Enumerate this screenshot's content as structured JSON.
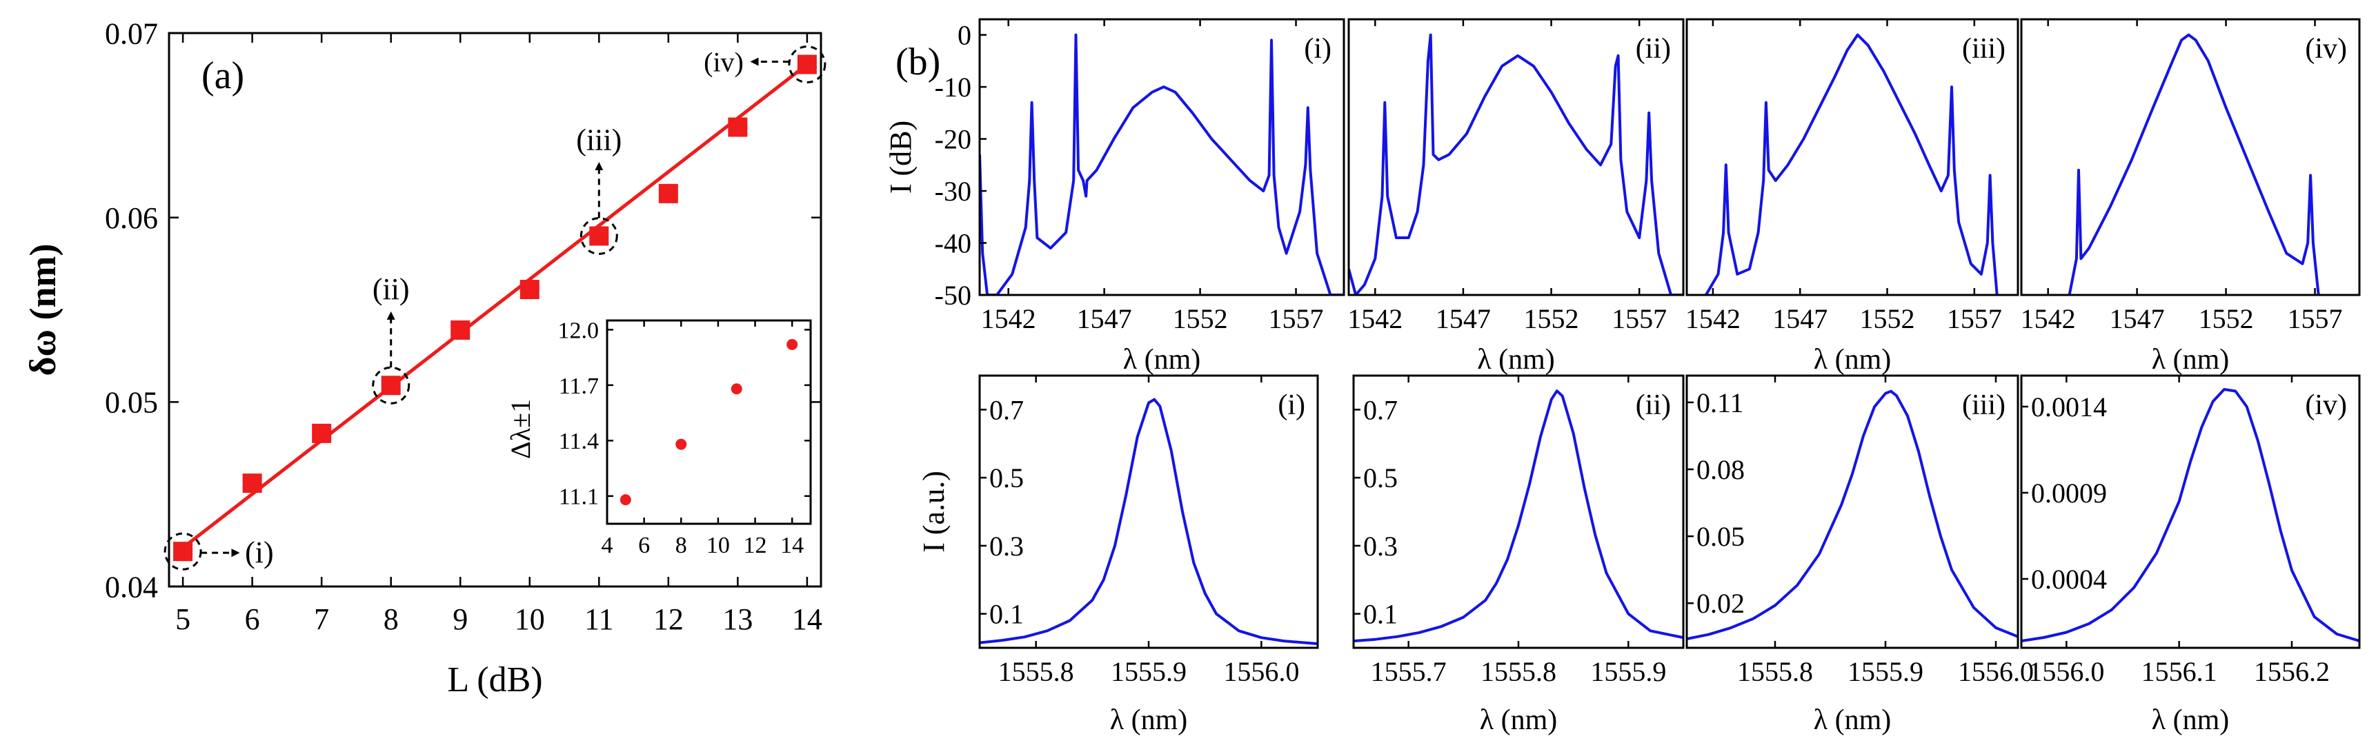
{
  "colors": {
    "red": "#ee1c1c",
    "blue": "#1414e6",
    "axis": "#000000"
  },
  "panel_a": {
    "label": "(a)",
    "callouts": [
      "(i)",
      "(ii)",
      "(iii)",
      "(iv)"
    ],
    "inset": {
      "ylabel": "Δλ±1"
    }
  },
  "panel_b": {
    "label": "(b)"
  },
  "chart_data": [
    {
      "id": "a",
      "type": "scatter",
      "title": "",
      "xlabel": "L (dB)",
      "ylabel": "δω (nm)",
      "x": [
        5,
        6,
        7,
        8,
        9,
        10,
        11,
        12,
        13,
        14
      ],
      "y": [
        0.0419,
        0.0456,
        0.0483,
        0.0509,
        0.0539,
        0.0561,
        0.059,
        0.0613,
        0.0649,
        0.0683
      ],
      "xlim": [
        4.8,
        14.2
      ],
      "ylim": [
        0.04,
        0.07
      ],
      "xticks": [
        5,
        6,
        7,
        8,
        9,
        10,
        11,
        12,
        13,
        14
      ],
      "xtick_labels": [
        "5",
        "6",
        "7",
        "8",
        "9",
        "10",
        "11",
        "12",
        "13",
        "14"
      ],
      "yticks": [
        0.04,
        0.05,
        0.06,
        0.07
      ],
      "ytick_labels": [
        "0.04",
        "0.05",
        "0.06",
        "0.07"
      ],
      "fit_line": {
        "x": [
          5,
          14
        ],
        "y": [
          0.0421,
          0.0683
        ]
      },
      "highlighted": [
        {
          "x": 5,
          "label": "(i)"
        },
        {
          "x": 8,
          "label": "(ii)"
        },
        {
          "x": 11,
          "label": "(iii)"
        },
        {
          "x": 14,
          "label": "(iv)"
        }
      ]
    },
    {
      "id": "a-inset",
      "type": "scatter",
      "xlabel": "",
      "ylabel": "Δλ±1",
      "x": [
        5,
        8,
        11,
        14
      ],
      "y": [
        11.08,
        11.38,
        11.68,
        11.92
      ],
      "xlim": [
        4,
        15
      ],
      "ylim": [
        10.95,
        12.05
      ],
      "xticks": [
        4,
        6,
        8,
        10,
        12,
        14
      ],
      "xtick_labels": [
        "4",
        "6",
        "8",
        "10",
        "12",
        "14"
      ],
      "yticks": [
        11.1,
        11.4,
        11.7,
        12.0
      ],
      "ytick_labels": [
        "11.1",
        "11.4",
        "11.7",
        "12.0"
      ]
    },
    {
      "id": "b-top-i",
      "type": "line",
      "tag": "(i)",
      "xlabel": "λ (nm)",
      "ylabel": "I (dB)",
      "xlim": [
        1540.5,
        1559.5
      ],
      "ylim": [
        -50,
        3
      ],
      "xticks": [
        1542,
        1547,
        1552,
        1557
      ],
      "xtick_labels": [
        "1542",
        "1547",
        "1552",
        "1557"
      ],
      "yticks": [
        0,
        -10,
        -20,
        -30,
        -40,
        -50
      ],
      "ytick_labels": [
        "0",
        "-10",
        "-20",
        "-30",
        "-40",
        "-50"
      ],
      "x": [
        1540.5,
        1540.65,
        1540.9,
        1541.4,
        1542.2,
        1542.9,
        1543.1,
        1543.22,
        1543.35,
        1543.5,
        1544.2,
        1545,
        1545.4,
        1545.52,
        1545.65,
        1545.9,
        1546.0,
        1546.05,
        1546.1,
        1546.6,
        1547.5,
        1548.5,
        1549.5,
        1550.1,
        1550.7,
        1551.6,
        1552.6,
        1553.6,
        1554.6,
        1555.3,
        1555.6,
        1555.72,
        1555.85,
        1556.1,
        1556.5,
        1557.2,
        1557.5,
        1557.62,
        1557.75,
        1558.1,
        1558.8,
        1559.5
      ],
      "y": [
        -23,
        -42,
        -50,
        -50,
        -46,
        -37,
        -28,
        -13,
        -28,
        -39,
        -41,
        -38,
        -28,
        0,
        -26,
        -28,
        -30,
        -31,
        -28,
        -26,
        -20,
        -14,
        -11,
        -10,
        -11,
        -15,
        -20,
        -24,
        -28,
        -30,
        -27,
        -1,
        -27,
        -37,
        -42,
        -34,
        -25,
        -14,
        -26,
        -42,
        -50,
        -50
      ]
    },
    {
      "id": "b-top-ii",
      "type": "line",
      "tag": "(ii)",
      "xlabel": "λ (nm)",
      "ylabel": "",
      "xlim": [
        1540.5,
        1559.5
      ],
      "ylim": [
        -50,
        3
      ],
      "xticks": [
        1542,
        1547,
        1552,
        1557
      ],
      "xtick_labels": [
        "1542",
        "1547",
        "1552",
        "1557"
      ],
      "yticks": [],
      "ytick_labels": [],
      "x": [
        1540.5,
        1540.9,
        1541.4,
        1542.0,
        1542.4,
        1542.55,
        1542.7,
        1543.2,
        1543.9,
        1544.4,
        1544.75,
        1545.0,
        1545.15,
        1545.3,
        1545.6,
        1546.2,
        1547.2,
        1548.2,
        1549.2,
        1550.1,
        1551.0,
        1552.0,
        1553.0,
        1554.0,
        1554.8,
        1555.4,
        1555.65,
        1555.8,
        1555.95,
        1556.3,
        1557.0,
        1557.4,
        1557.55,
        1557.7,
        1558.1,
        1558.8,
        1559.5
      ],
      "y": [
        -45,
        -50,
        -48,
        -43,
        -31,
        -13,
        -31,
        -39,
        -39,
        -34,
        -25,
        -5,
        0,
        -23,
        -24,
        -23,
        -19,
        -12,
        -6,
        -4,
        -6,
        -11,
        -17,
        -22,
        -25,
        -21,
        -6,
        -4,
        -24,
        -34,
        -39,
        -28,
        -15,
        -28,
        -42,
        -50,
        -50
      ]
    },
    {
      "id": "b-top-iii",
      "type": "line",
      "tag": "(iii)",
      "xlabel": "λ (nm)",
      "ylabel": "",
      "xlim": [
        1540.5,
        1559.5
      ],
      "ylim": [
        -50,
        3
      ],
      "xticks": [
        1542,
        1547,
        1552,
        1557
      ],
      "xtick_labels": [
        "1542",
        "1547",
        "1552",
        "1557"
      ],
      "yticks": [],
      "ytick_labels": [],
      "x": [
        1541.6,
        1542.3,
        1542.6,
        1542.75,
        1542.9,
        1543.4,
        1544.1,
        1544.6,
        1544.9,
        1545.05,
        1545.2,
        1545.6,
        1546.3,
        1547.2,
        1548.1,
        1549.0,
        1549.7,
        1550.3,
        1550.9,
        1551.8,
        1552.7,
        1553.6,
        1554.4,
        1555.1,
        1555.5,
        1555.7,
        1555.85,
        1556.1,
        1556.8,
        1557.4,
        1557.75,
        1557.9,
        1558.05,
        1558.3
      ],
      "y": [
        -50,
        -46,
        -38,
        -25,
        -38,
        -46,
        -45,
        -38,
        -28,
        -13,
        -26,
        -28,
        -25,
        -20,
        -14,
        -8,
        -3,
        0,
        -2,
        -7,
        -13,
        -19,
        -25,
        -30,
        -27,
        -10,
        -26,
        -36,
        -44,
        -46,
        -40,
        -27,
        -40,
        -50
      ]
    },
    {
      "id": "b-top-iv",
      "type": "line",
      "tag": "(iv)",
      "xlabel": "λ (nm)",
      "ylabel": "",
      "xlim": [
        1540.5,
        1559.5
      ],
      "ylim": [
        -50,
        3
      ],
      "xticks": [
        1542,
        1547,
        1552,
        1557
      ],
      "xtick_labels": [
        "1542",
        "1547",
        "1552",
        "1557"
      ],
      "yticks": [],
      "ytick_labels": [],
      "x": [
        1543.2,
        1543.6,
        1543.72,
        1543.85,
        1544.3,
        1545.5,
        1546.7,
        1547.9,
        1549.0,
        1549.5,
        1549.9,
        1550.3,
        1551.0,
        1552.0,
        1553.2,
        1554.4,
        1555.4,
        1556.3,
        1556.6,
        1556.75,
        1556.9,
        1557.2
      ],
      "y": [
        -50,
        -43,
        -26,
        -43,
        -41,
        -33,
        -24,
        -14,
        -5,
        -1,
        0,
        -1,
        -5,
        -14,
        -24,
        -34,
        -42,
        -44,
        -40,
        -27,
        -40,
        -50
      ]
    },
    {
      "id": "b-bot-i",
      "type": "line",
      "tag": "(i)",
      "xlabel": "λ (nm)",
      "ylabel": "I (a.u.)",
      "xlim": [
        1555.75,
        1556.05
      ],
      "ylim": [
        0,
        0.8
      ],
      "xticks": [
        1555.8,
        1555.9,
        1556.0
      ],
      "xtick_labels": [
        "1555.8",
        "1555.9",
        "1556.0"
      ],
      "yticks": [
        0.1,
        0.3,
        0.5,
        0.7
      ],
      "ytick_labels": [
        "0.1",
        "0.3",
        "0.5",
        "0.7"
      ],
      "x": [
        1555.75,
        1555.77,
        1555.79,
        1555.81,
        1555.83,
        1555.85,
        1555.86,
        1555.87,
        1555.88,
        1555.89,
        1555.9,
        1555.905,
        1555.91,
        1555.92,
        1555.93,
        1555.94,
        1555.95,
        1555.96,
        1555.98,
        1556.0,
        1556.02,
        1556.05
      ],
      "y": [
        0.015,
        0.022,
        0.032,
        0.05,
        0.08,
        0.14,
        0.2,
        0.3,
        0.45,
        0.62,
        0.72,
        0.73,
        0.71,
        0.58,
        0.4,
        0.25,
        0.16,
        0.1,
        0.05,
        0.03,
        0.02,
        0.012
      ]
    },
    {
      "id": "b-bot-ii",
      "type": "line",
      "tag": "(ii)",
      "xlabel": "λ (nm)",
      "ylabel": "",
      "xlim": [
        1555.65,
        1555.95
      ],
      "ylim": [
        0,
        0.8
      ],
      "xticks": [
        1555.7,
        1555.8,
        1555.9
      ],
      "xtick_labels": [
        "1555.7",
        "1555.8",
        "1555.9"
      ],
      "yticks": [
        0.1,
        0.3,
        0.5,
        0.7
      ],
      "ytick_labels": [
        "0.1",
        "0.3",
        "0.5",
        "0.7"
      ],
      "x": [
        1555.65,
        1555.67,
        1555.69,
        1555.71,
        1555.73,
        1555.75,
        1555.77,
        1555.78,
        1555.79,
        1555.8,
        1555.81,
        1555.82,
        1555.83,
        1555.835,
        1555.84,
        1555.85,
        1555.86,
        1555.87,
        1555.88,
        1555.9,
        1555.92,
        1555.95
      ],
      "y": [
        0.02,
        0.025,
        0.033,
        0.045,
        0.063,
        0.09,
        0.14,
        0.19,
        0.26,
        0.36,
        0.48,
        0.62,
        0.73,
        0.755,
        0.74,
        0.63,
        0.47,
        0.33,
        0.22,
        0.1,
        0.05,
        0.03
      ]
    },
    {
      "id": "b-bot-iii",
      "type": "line",
      "tag": "(iii)",
      "xlabel": "λ (nm)",
      "ylabel": "",
      "xlim": [
        1555.72,
        1556.02
      ],
      "ylim": [
        0,
        0.122
      ],
      "xticks": [
        1555.8,
        1555.9,
        1556.0
      ],
      "xtick_labels": [
        "1555.8",
        "1555.9",
        "1556.0"
      ],
      "yticks": [
        0.02,
        0.05,
        0.08,
        0.11
      ],
      "ytick_labels": [
        "0.02",
        "0.05",
        "0.08",
        "0.11"
      ],
      "x": [
        1555.72,
        1555.74,
        1555.76,
        1555.78,
        1555.8,
        1555.82,
        1555.84,
        1555.86,
        1555.87,
        1555.88,
        1555.89,
        1555.9,
        1555.905,
        1555.91,
        1555.92,
        1555.93,
        1555.94,
        1555.95,
        1555.96,
        1555.98,
        1556.0,
        1556.02
      ],
      "y": [
        0.004,
        0.006,
        0.009,
        0.013,
        0.019,
        0.028,
        0.042,
        0.064,
        0.078,
        0.095,
        0.108,
        0.114,
        0.115,
        0.113,
        0.104,
        0.088,
        0.068,
        0.05,
        0.035,
        0.018,
        0.009,
        0.005
      ]
    },
    {
      "id": "b-bot-iv",
      "type": "line",
      "tag": "(iv)",
      "xlabel": "λ (nm)",
      "ylabel": "",
      "xlim": [
        1555.96,
        1556.26
      ],
      "ylim": [
        0,
        0.00158
      ],
      "xticks": [
        1556.0,
        1556.1,
        1556.2
      ],
      "xtick_labels": [
        "1556.0",
        "1556.1",
        "1556.2"
      ],
      "yticks": [
        0.0004,
        0.0009,
        0.0014
      ],
      "ytick_labels": [
        "0.0004",
        "0.0009",
        "0.0014"
      ],
      "x": [
        1555.96,
        1555.98,
        1556.0,
        1556.02,
        1556.04,
        1556.06,
        1556.08,
        1556.1,
        1556.11,
        1556.12,
        1556.13,
        1556.14,
        1556.15,
        1556.16,
        1556.17,
        1556.18,
        1556.19,
        1556.2,
        1556.22,
        1556.24,
        1556.26
      ],
      "y": [
        4e-05,
        6e-05,
        9e-05,
        0.00014,
        0.00022,
        0.00035,
        0.00055,
        0.00085,
        0.00108,
        0.00128,
        0.00143,
        0.0015,
        0.00149,
        0.0014,
        0.0012,
        0.00095,
        0.00068,
        0.00045,
        0.00018,
        8e-05,
        4e-05
      ]
    }
  ]
}
